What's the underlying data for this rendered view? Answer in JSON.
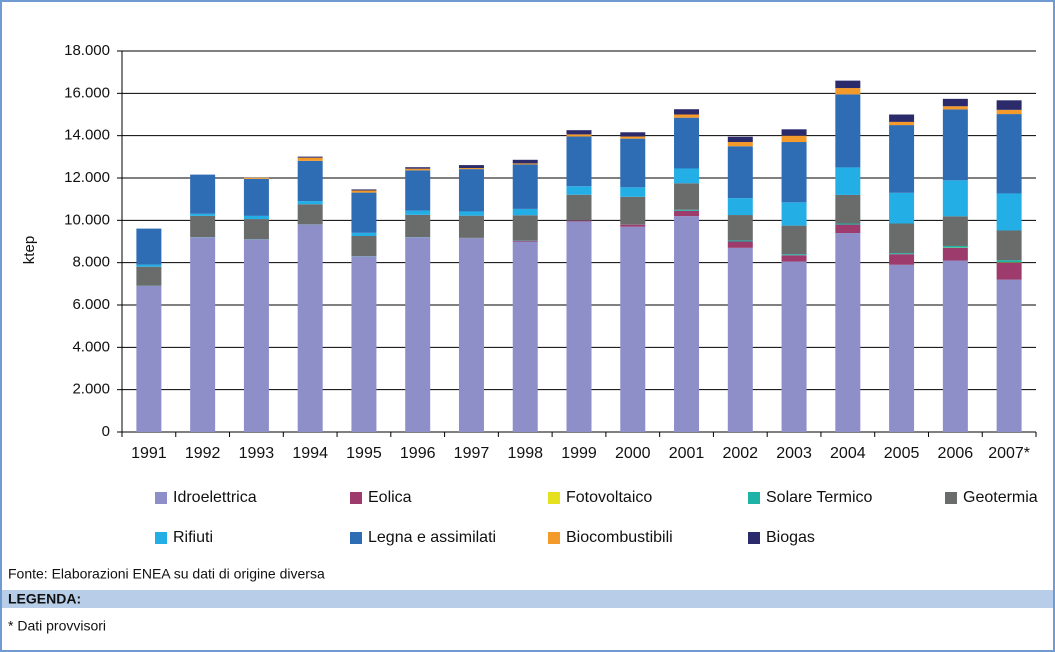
{
  "chart_data": {
    "type": "bar",
    "stacked": true,
    "y_label": "ktep",
    "categories": [
      "1991",
      "1992",
      "1993",
      "1994",
      "1995",
      "1996",
      "1997",
      "1998",
      "1999",
      "2000",
      "2001",
      "2002",
      "2003",
      "2004",
      "2005",
      "2006",
      "2007*"
    ],
    "series": [
      {
        "name": "Idroelettrica",
        "color": "#8e8fc9",
        "values": [
          6900,
          9200,
          9100,
          9800,
          8300,
          9200,
          9150,
          9000,
          9950,
          9700,
          10200,
          8700,
          8050,
          9400,
          7900,
          8100,
          7200
        ]
      },
      {
        "name": "Eolica",
        "color": "#9c3b6c",
        "values": [
          0,
          0,
          0,
          0,
          0,
          0,
          10,
          30,
          50,
          100,
          250,
          300,
          300,
          400,
          500,
          600,
          800
        ]
      },
      {
        "name": "Fotovoltaico",
        "color": "#e6e11f",
        "values": [
          0,
          0,
          0,
          0,
          0,
          0,
          0,
          0,
          0,
          0,
          0,
          0,
          0,
          0,
          0,
          10,
          20
        ]
      },
      {
        "name": "Solare Termico",
        "color": "#1fb2a6",
        "values": [
          10,
          10,
          10,
          10,
          10,
          10,
          10,
          10,
          10,
          10,
          50,
          50,
          50,
          50,
          50,
          80,
          100
        ]
      },
      {
        "name": "Geotermia",
        "color": "#6a6b6b",
        "values": [
          900,
          1000,
          950,
          950,
          950,
          1050,
          1050,
          1200,
          1200,
          1300,
          1250,
          1200,
          1350,
          1350,
          1400,
          1400,
          1400
        ]
      },
      {
        "name": "Rifiuti",
        "color": "#23afe6",
        "values": [
          100,
          100,
          150,
          150,
          150,
          200,
          200,
          300,
          400,
          450,
          700,
          800,
          1100,
          1300,
          1450,
          1700,
          1750
        ]
      },
      {
        "name": "Legna e assimilati",
        "color": "#2e6cb4",
        "values": [
          1700,
          1850,
          1750,
          1900,
          1900,
          1900,
          2000,
          2100,
          2350,
          2300,
          2400,
          2450,
          2850,
          3450,
          3200,
          3350,
          3750
        ]
      },
      {
        "name": "Biocombustibili",
        "color": "#f39a2b",
        "values": [
          0,
          0,
          50,
          150,
          100,
          80,
          50,
          50,
          100,
          100,
          150,
          200,
          300,
          300,
          150,
          150,
          200
        ]
      },
      {
        "name": "Biogas",
        "color": "#2b2b6c",
        "values": [
          0,
          0,
          0,
          50,
          50,
          70,
          140,
          170,
          200,
          200,
          250,
          250,
          300,
          350,
          350,
          350,
          450
        ]
      }
    ],
    "ylim": [
      0,
      18000
    ],
    "yticks": [
      0,
      {
        "value": 2000,
        "label": "2.000"
      },
      {
        "value": 4000,
        "label": "4.000"
      },
      {
        "value": 6000,
        "label": "6.000"
      },
      {
        "value": 8000,
        "label": "8.000"
      },
      {
        "value": 10000,
        "label": "10.000"
      },
      {
        "value": 12000,
        "label": "12.000"
      },
      {
        "value": 14000,
        "label": "14.000"
      },
      {
        "value": 16000,
        "label": "16.000"
      },
      {
        "value": 18000,
        "label": "18.000"
      }
    ],
    "grid": true,
    "legend": "bottom",
    "source": "Fonte: Elaborazioni ENEA su dati di origine diversa",
    "legend_heading": "LEGENDA:",
    "note": "* Dati provvisori"
  }
}
